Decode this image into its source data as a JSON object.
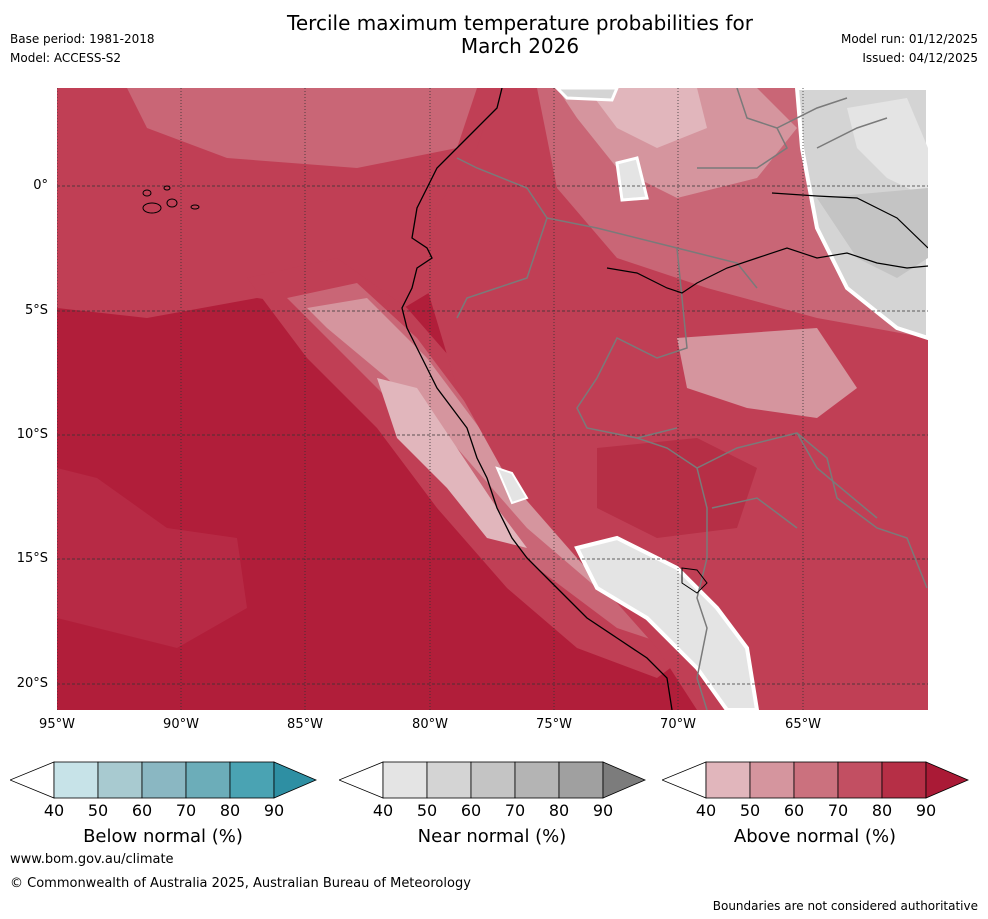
{
  "header": {
    "title_line1": "Tercile maximum temperature probabilities for",
    "title_line2": "March 2026",
    "base_period": "Base period: 1981-2018",
    "model": "Model: ACCESS-S2",
    "model_run": "Model run: 01/12/2025",
    "issued": "Issued: 04/12/2025"
  },
  "map": {
    "lat_labels": [
      "0°",
      "5°S",
      "10°S",
      "15°S",
      "20°S"
    ],
    "lon_labels": [
      "95°W",
      "90°W",
      "85°W",
      "80°W",
      "75°W",
      "70°W",
      "65°W"
    ]
  },
  "colorbars": [
    {
      "title": "Below normal (%)",
      "ticks": [
        "40",
        "50",
        "60",
        "70",
        "80",
        "90"
      ],
      "colors": [
        "#ffffff",
        "#c7e3e8",
        "#a8cad0",
        "#8ab7c2",
        "#6cadb9",
        "#4aa3b3",
        "#2e8fa3"
      ]
    },
    {
      "title": "Near normal (%)",
      "ticks": [
        "40",
        "50",
        "60",
        "70",
        "80",
        "90"
      ],
      "colors": [
        "#ffffff",
        "#e4e4e4",
        "#d4d4d4",
        "#c4c4c4",
        "#b4b4b4",
        "#a0a0a0",
        "#7c7c7c"
      ]
    },
    {
      "title": "Above normal (%)",
      "ticks": [
        "40",
        "50",
        "60",
        "70",
        "80",
        "90"
      ],
      "colors": [
        "#ffffff",
        "#e1b6bc",
        "#d5959e",
        "#cb717e",
        "#c24f62",
        "#b62f46",
        "#aa1a36"
      ]
    }
  ],
  "footer": {
    "url": "www.bom.gov.au/climate",
    "copyright": "© Commonwealth of Australia 2025, Australian Bureau of Meteorology",
    "disclaimer": "Boundaries are not considered authoritative"
  }
}
